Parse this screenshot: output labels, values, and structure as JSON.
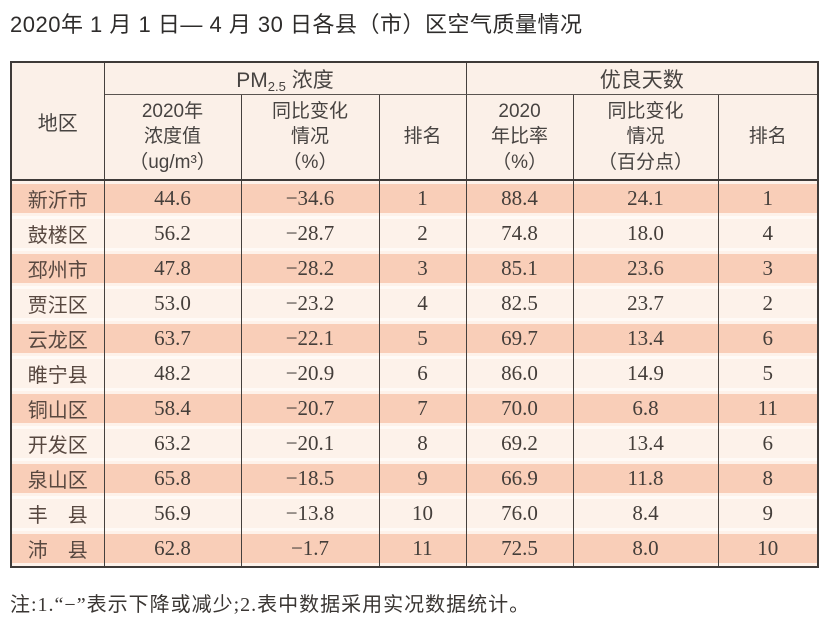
{
  "title": "2020年 1 月 1 日— 4 月 30 日各县（市）区空气质量情况",
  "table": {
    "corner_label": "地区",
    "groups": {
      "pm25": {
        "label_prefix": "PM",
        "label_sub": "2.5",
        "label_suffix": " 浓度"
      },
      "good_days": {
        "label": "优良天数"
      }
    },
    "subheaders": [
      "2020年\n浓度值\n（ug/m³）",
      "同比变化\n情况\n（%）",
      "排名",
      "2020\n年比率\n（%）",
      "同比变化\n情况\n（百分点）",
      "排名"
    ],
    "row_keys": [
      "region",
      "pm_value",
      "pm_change",
      "pm_rank",
      "good_rate",
      "good_change",
      "good_rank"
    ],
    "rows": [
      {
        "region": "新沂市",
        "pm_value": "44.6",
        "pm_change": "−34.6",
        "pm_rank": "1",
        "good_rate": "88.4",
        "good_change": "24.1",
        "good_rank": "1"
      },
      {
        "region": "鼓楼区",
        "pm_value": "56.2",
        "pm_change": "−28.7",
        "pm_rank": "2",
        "good_rate": "74.8",
        "good_change": "18.0",
        "good_rank": "4"
      },
      {
        "region": "邳州市",
        "pm_value": "47.8",
        "pm_change": "−28.2",
        "pm_rank": "3",
        "good_rate": "85.1",
        "good_change": "23.6",
        "good_rank": "3"
      },
      {
        "region": "贾汪区",
        "pm_value": "53.0",
        "pm_change": "−23.2",
        "pm_rank": "4",
        "good_rate": "82.5",
        "good_change": "23.7",
        "good_rank": "2"
      },
      {
        "region": "云龙区",
        "pm_value": "63.7",
        "pm_change": "−22.1",
        "pm_rank": "5",
        "good_rate": "69.7",
        "good_change": "13.4",
        "good_rank": "6"
      },
      {
        "region": "睢宁县",
        "pm_value": "48.2",
        "pm_change": "−20.9",
        "pm_rank": "6",
        "good_rate": "86.0",
        "good_change": "14.9",
        "good_rank": "5"
      },
      {
        "region": "铜山区",
        "pm_value": "58.4",
        "pm_change": "−20.7",
        "pm_rank": "7",
        "good_rate": "70.0",
        "good_change": "6.8",
        "good_rank": "11"
      },
      {
        "region": "开发区",
        "pm_value": "63.2",
        "pm_change": "−20.1",
        "pm_rank": "8",
        "good_rate": "69.2",
        "good_change": "13.4",
        "good_rank": "6"
      },
      {
        "region": "泉山区",
        "pm_value": "65.8",
        "pm_change": "−18.5",
        "pm_rank": "9",
        "good_rate": "66.9",
        "good_change": "11.8",
        "good_rank": "8"
      },
      {
        "region": "丰　县",
        "pm_value": "56.9",
        "pm_change": "−13.8",
        "pm_rank": "10",
        "good_rate": "76.0",
        "good_change": "8.4",
        "good_rank": "9"
      },
      {
        "region": "沛　县",
        "pm_value": "62.8",
        "pm_change": "−1.7",
        "pm_rank": "11",
        "good_rate": "72.5",
        "good_change": "8.0",
        "good_rank": "10"
      }
    ]
  },
  "footnote": "注:1.“−”表示下降或减少;2.表中数据采用实况数据统计。",
  "colors": {
    "row_dark": "#f9ceb8",
    "row_light": "#fdf2ea",
    "header_bg": "#fbf0e8",
    "border_dark": "#3e3a38",
    "text": "#443e3a"
  }
}
